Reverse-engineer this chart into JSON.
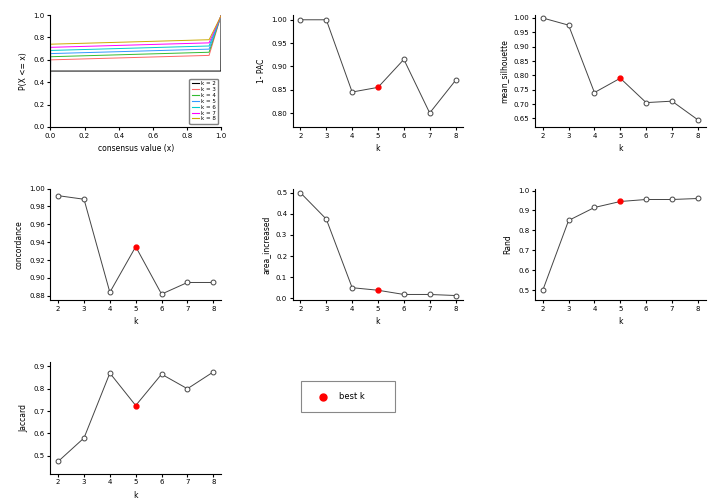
{
  "k_values": [
    2,
    3,
    4,
    5,
    6,
    7,
    8
  ],
  "pac_1minus": [
    1.0,
    1.0,
    0.845,
    0.855,
    0.915,
    0.8,
    0.87
  ],
  "mean_silhouette": [
    1.0,
    0.975,
    0.74,
    0.79,
    0.705,
    0.71,
    0.645
  ],
  "concordance": [
    0.992,
    0.988,
    0.884,
    0.935,
    0.882,
    0.895,
    0.895
  ],
  "area_increased": [
    0.5,
    0.375,
    0.05,
    0.038,
    0.018,
    0.018,
    0.013
  ],
  "rand": [
    0.5,
    0.85,
    0.915,
    0.945,
    0.955,
    0.955,
    0.96
  ],
  "jaccard": [
    0.475,
    0.58,
    0.87,
    0.725,
    0.865,
    0.8,
    0.875
  ],
  "best_k": 5,
  "ecdf_colors": [
    "#000000",
    "#FF6666",
    "#33BB33",
    "#3399FF",
    "#00CCCC",
    "#FF00FF",
    "#CCAA00"
  ],
  "ecdf_k_labels": [
    "k = 2",
    "k = 3",
    "k = 4",
    "k = 5",
    "k = 6",
    "k = 7",
    "k = 8"
  ],
  "red_dot_color": "#FF0000",
  "line_color": "#444444",
  "open_circle_facecolor": "#FFFFFF",
  "open_circle_edgecolor": "#444444",
  "bg_color": "#FFFFFF"
}
